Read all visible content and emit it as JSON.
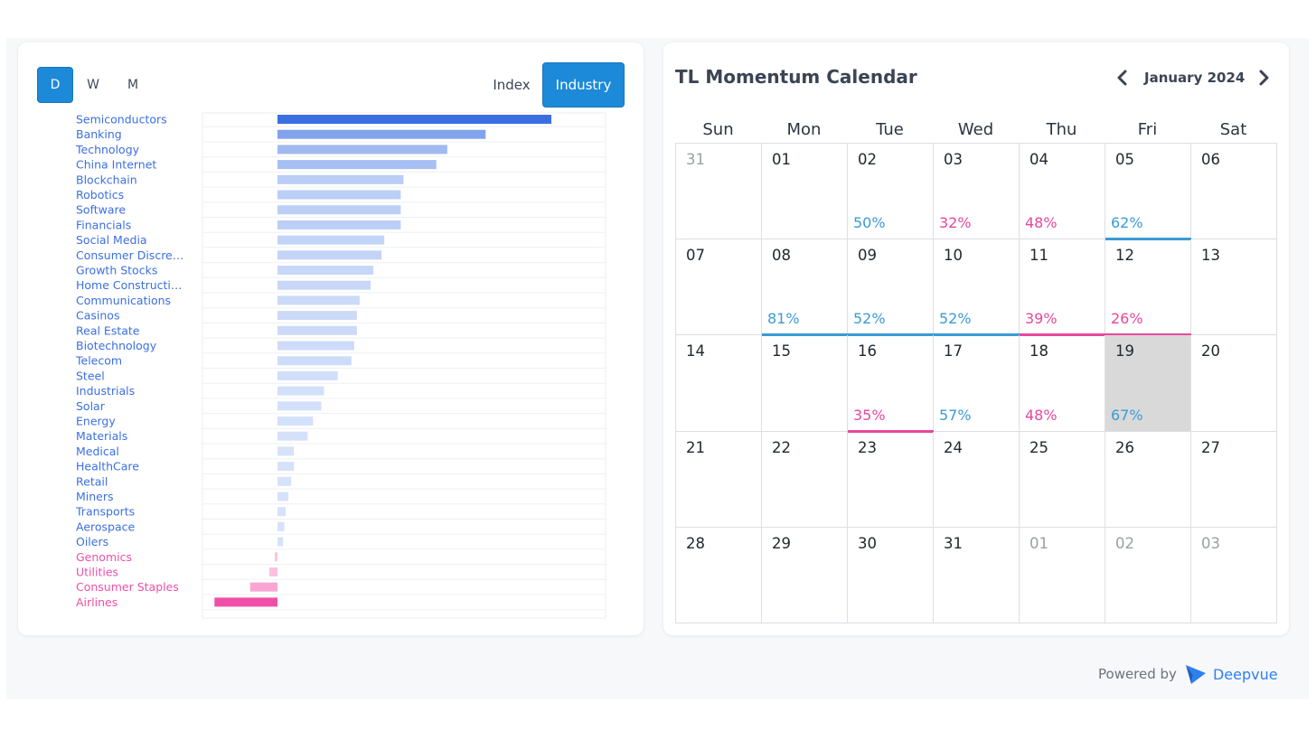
{
  "period_toggle": {
    "options": [
      "D",
      "W",
      "M"
    ],
    "active": "D"
  },
  "view_toggle": {
    "index_label": "Index",
    "industry_label": "Industry",
    "active": "Industry"
  },
  "chart_data": {
    "type": "bar",
    "orientation": "horizontal",
    "categories": [
      "Semiconductors",
      "Banking",
      "Technology",
      "China Internet",
      "Blockchain",
      "Robotics",
      "Software",
      "Financials",
      "Social Media",
      "Consumer Discre…",
      "Growth Stocks",
      "Home Constructi…",
      "Communications",
      "Casinos",
      "Real Estate",
      "Biotechnology",
      "Telecom",
      "Steel",
      "Industrials",
      "Solar",
      "Energy",
      "Materials",
      "Medical",
      "HealthCare",
      "Retail",
      "Miners",
      "Transports",
      "Aerospace",
      "Oilers",
      "Genomics",
      "Utilities",
      "Consumer Staples",
      "Airlines"
    ],
    "values": [
      100,
      76,
      62,
      58,
      46,
      45,
      45,
      45,
      39,
      38,
      35,
      34,
      30,
      29,
      29,
      28,
      27,
      22,
      17,
      16,
      13,
      11,
      6,
      6,
      5,
      4,
      3,
      2.5,
      2,
      -1,
      -3,
      -10,
      -23
    ],
    "positive_color": "#3b6fe0",
    "negative_color": "#ef4fa6",
    "grid": true
  },
  "calendar": {
    "title": "TL Momentum Calendar",
    "month": "January 2024",
    "days_of_week": [
      "Sun",
      "Mon",
      "Tue",
      "Wed",
      "Thu",
      "Fri",
      "Sat"
    ],
    "weeks": [
      [
        {
          "d": "31",
          "o": true
        },
        {
          "d": "01"
        },
        {
          "d": "02",
          "p": "50%",
          "c": "blue"
        },
        {
          "d": "03",
          "p": "32%",
          "c": "pink"
        },
        {
          "d": "04",
          "p": "48%",
          "c": "pink"
        },
        {
          "d": "05",
          "p": "62%",
          "c": "blue",
          "u": true
        },
        {
          "d": "06"
        }
      ],
      [
        {
          "d": "07"
        },
        {
          "d": "08",
          "p": "81%",
          "c": "blue",
          "u": true
        },
        {
          "d": "09",
          "p": "52%",
          "c": "blue",
          "u": true
        },
        {
          "d": "10",
          "p": "52%",
          "c": "blue",
          "u": true
        },
        {
          "d": "11",
          "p": "39%",
          "c": "pink",
          "u": true
        },
        {
          "d": "12",
          "p": "26%",
          "c": "pink",
          "u": true
        },
        {
          "d": "13"
        }
      ],
      [
        {
          "d": "14"
        },
        {
          "d": "15"
        },
        {
          "d": "16",
          "p": "35%",
          "c": "pink",
          "u": true
        },
        {
          "d": "17",
          "p": "57%",
          "c": "blue"
        },
        {
          "d": "18",
          "p": "48%",
          "c": "pink"
        },
        {
          "d": "19",
          "p": "67%",
          "c": "blue",
          "today": true
        },
        {
          "d": "20"
        }
      ],
      [
        {
          "d": "21"
        },
        {
          "d": "22"
        },
        {
          "d": "23"
        },
        {
          "d": "24"
        },
        {
          "d": "25"
        },
        {
          "d": "26"
        },
        {
          "d": "27"
        }
      ],
      [
        {
          "d": "28"
        },
        {
          "d": "29"
        },
        {
          "d": "30"
        },
        {
          "d": "31"
        },
        {
          "d": "01",
          "o": true
        },
        {
          "d": "02",
          "o": true
        },
        {
          "d": "03",
          "o": true
        }
      ]
    ],
    "colors": {
      "blue": "#3a9bd5",
      "pink": "#e8479c"
    }
  },
  "footer": {
    "powered_by": "Powered by",
    "brand": "Deepvue"
  }
}
